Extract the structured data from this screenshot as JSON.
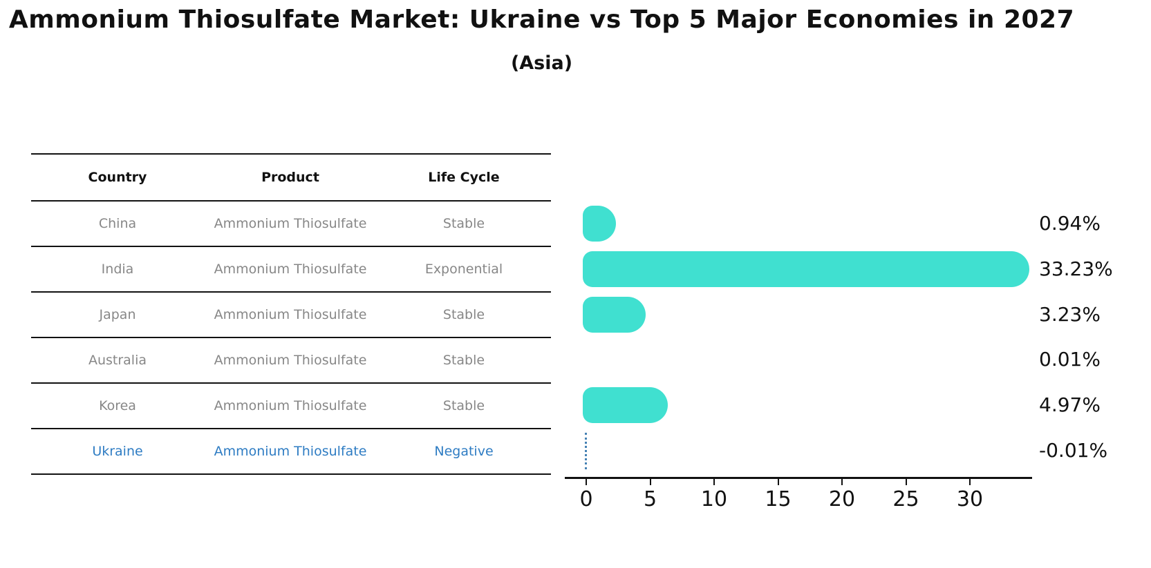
{
  "title": "Ammonium Thiosulfate Market: Ukraine vs Top 5 Major Economies in 2027",
  "subtitle": "(Asia)",
  "table": {
    "headers": [
      "Country",
      "Product",
      "Life Cycle"
    ],
    "rows": [
      {
        "country": "China",
        "product": "Ammonium Thiosulfate",
        "life_cycle": "Stable",
        "highlight": false
      },
      {
        "country": "India",
        "product": "Ammonium Thiosulfate",
        "life_cycle": "Exponential",
        "highlight": false
      },
      {
        "country": "Japan",
        "product": "Ammonium Thiosulfate",
        "life_cycle": "Stable",
        "highlight": false
      },
      {
        "country": "Australia",
        "product": "Ammonium Thiosulfate",
        "life_cycle": "Stable",
        "highlight": false
      },
      {
        "country": "Korea",
        "product": "Ammonium Thiosulfate",
        "life_cycle": "Stable",
        "highlight": false
      },
      {
        "country": "Ukraine",
        "product": "Ammonium Thiosulfate",
        "life_cycle": "Negative",
        "highlight": true
      }
    ]
  },
  "chart_data": {
    "type": "bar",
    "orientation": "horizontal",
    "categories": [
      "China",
      "India",
      "Japan",
      "Australia",
      "Korea",
      "Ukraine"
    ],
    "values": [
      0.94,
      33.23,
      3.23,
      0.01,
      4.97,
      -0.01
    ],
    "value_labels": [
      "0.94%",
      "33.23%",
      "3.23%",
      "0.01%",
      "4.97%",
      "-0.01%"
    ],
    "x_ticks": [
      "0",
      "5",
      "10",
      "15",
      "20",
      "25",
      "30"
    ],
    "x_tick_values": [
      0,
      5,
      10,
      15,
      20,
      25,
      30
    ],
    "xlim": [
      -1.7,
      34.9
    ],
    "grid": false,
    "legend": null,
    "bar_color": "#40E0D0",
    "negative_marker_color": "#4682B4",
    "highlight_text_color": "#2e7cc3"
  }
}
